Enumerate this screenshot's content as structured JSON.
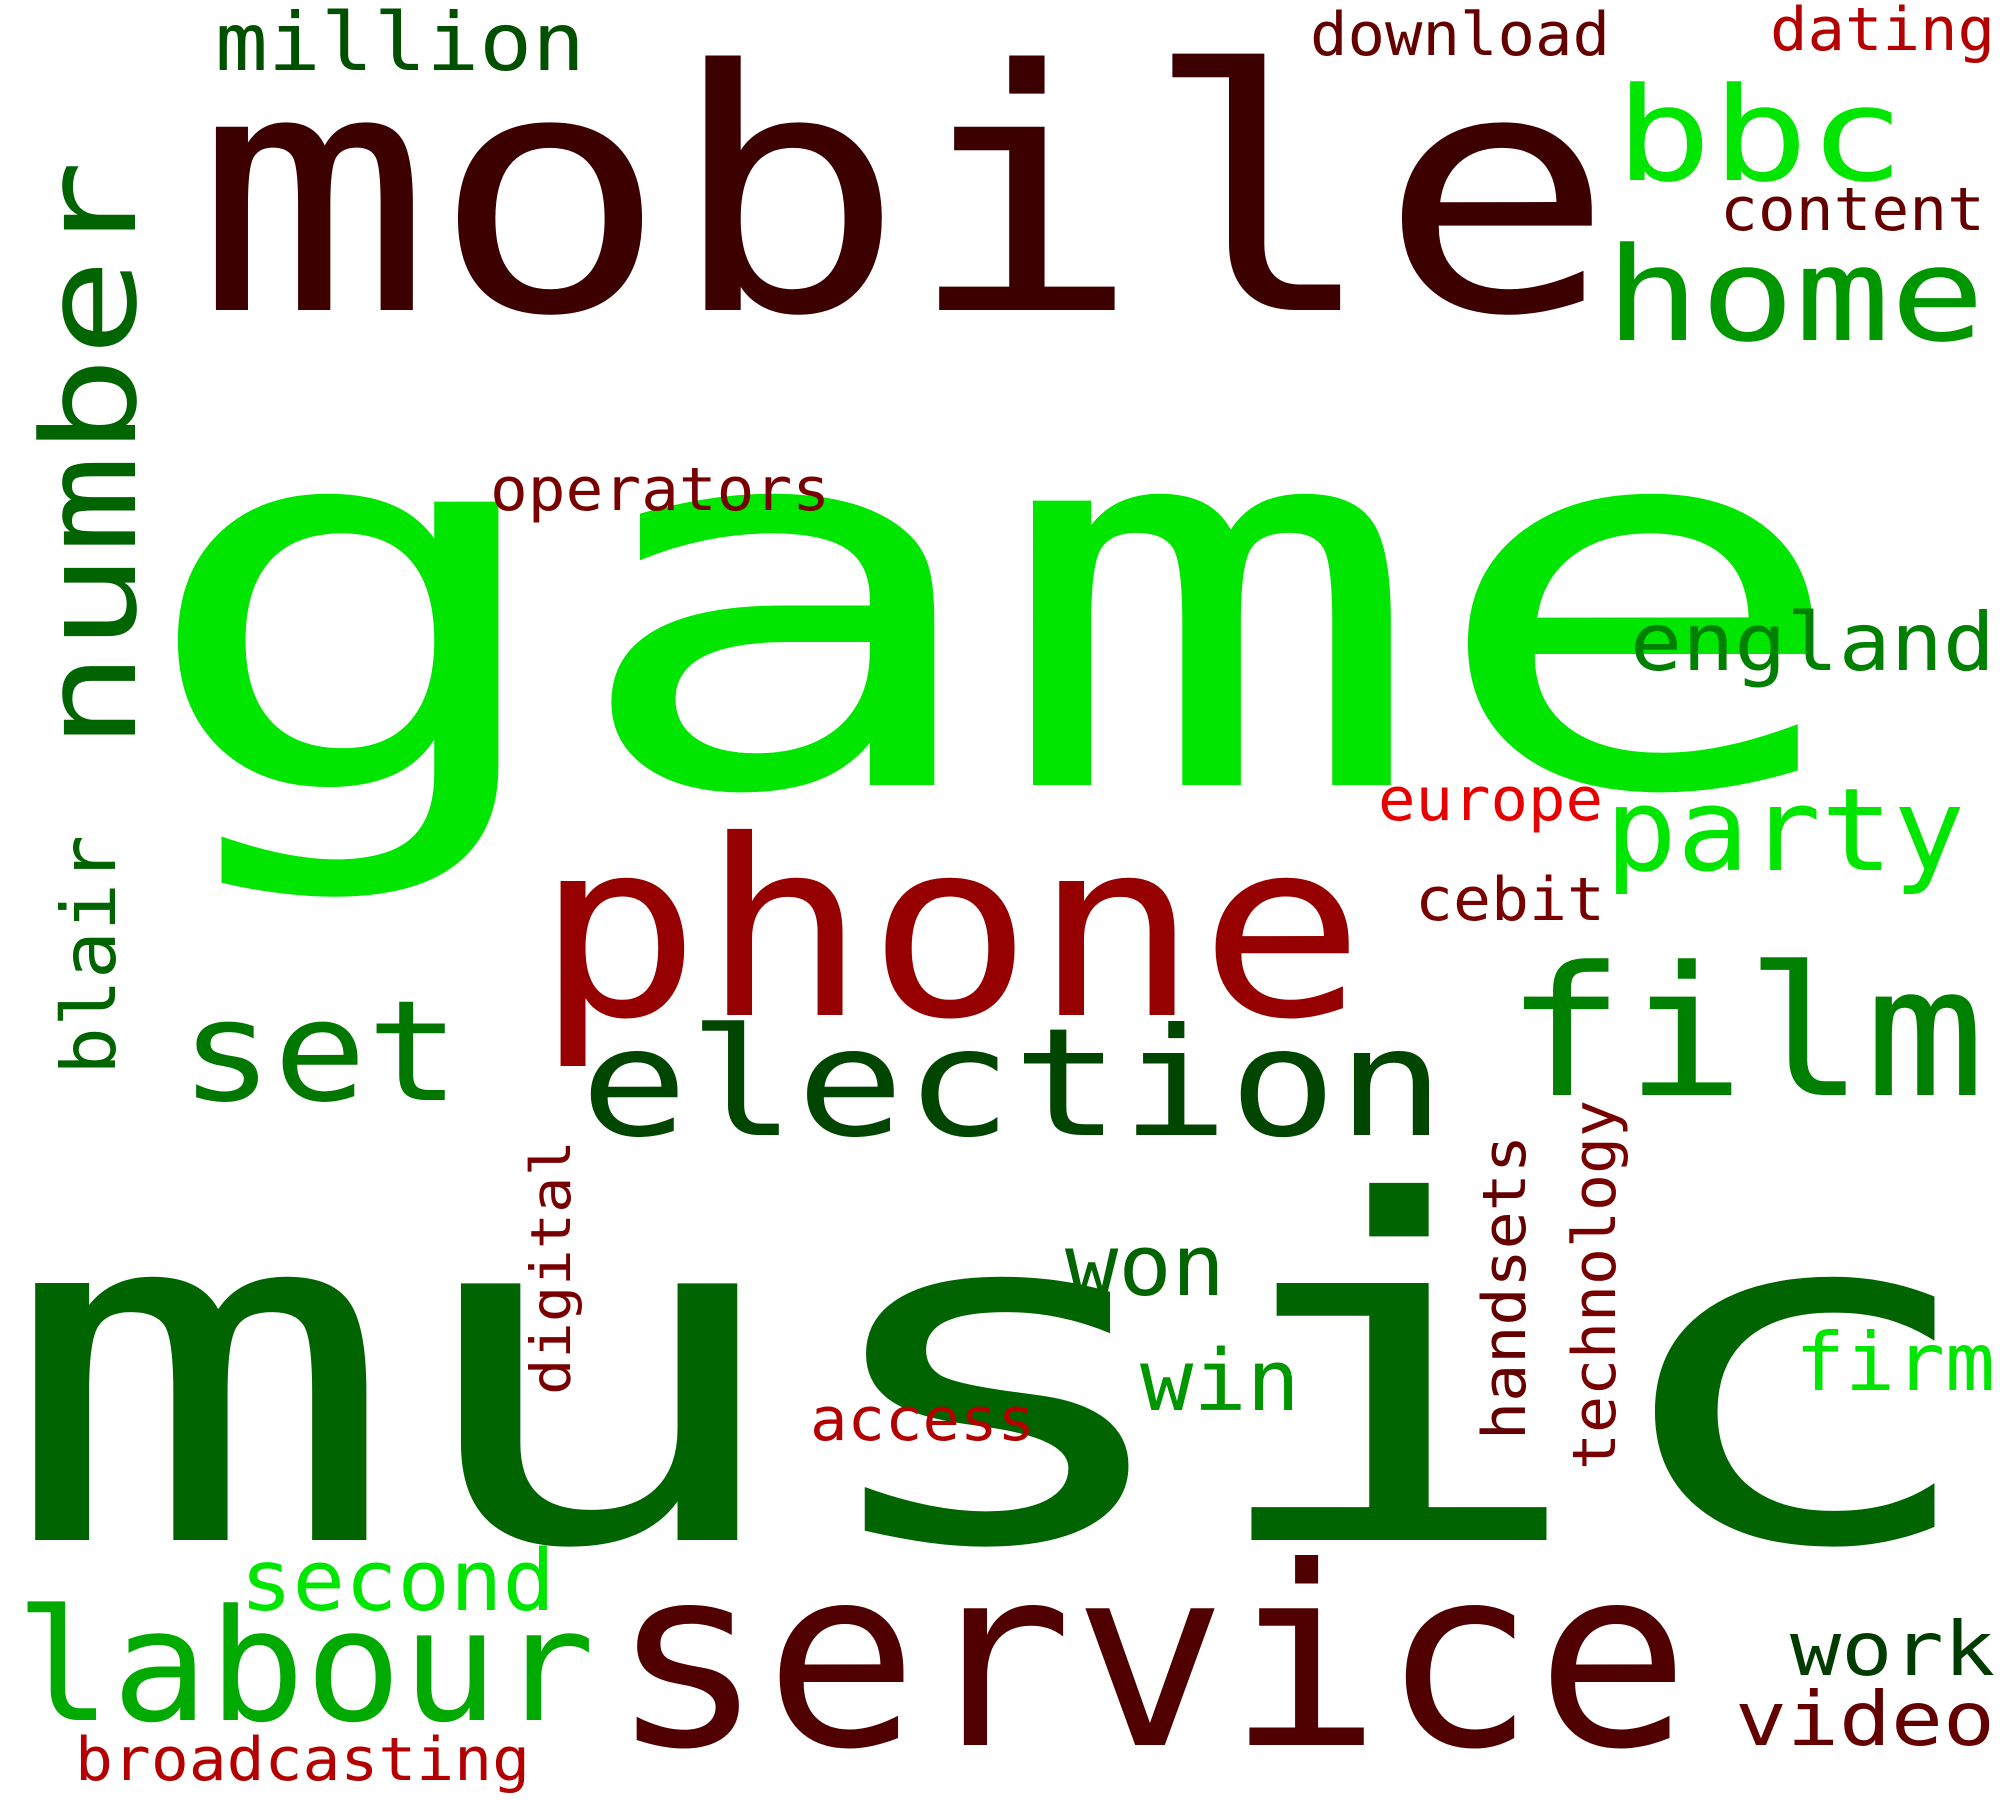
{
  "cloud": {
    "colors": {
      "bright_green": "#00E600",
      "green": "#00B400",
      "mid_green": "#008C00",
      "forest_green": "#007800",
      "deep_green": "#006400",
      "dark_green": "#004600",
      "darkest_green": "#003C00",
      "bright_red": "#E60000",
      "red": "#B40000",
      "dark_red": "#960000",
      "maroon": "#780000",
      "deep_maroon": "#500000",
      "darkest_maroon": "#3C0000"
    },
    "words": [
      {
        "text": "game",
        "color": "#00E600"
      },
      {
        "text": "music",
        "color": "#006400"
      },
      {
        "text": "mobile",
        "color": "#3C0000"
      },
      {
        "text": "phone",
        "color": "#960000"
      },
      {
        "text": "service",
        "color": "#500000"
      },
      {
        "text": "election",
        "color": "#004600"
      },
      {
        "text": "film",
        "color": "#008000"
      },
      {
        "text": "number",
        "color": "#006400"
      },
      {
        "text": "home",
        "color": "#009600"
      },
      {
        "text": "bbc",
        "color": "#00E600"
      },
      {
        "text": "labour",
        "color": "#00AA00"
      },
      {
        "text": "set",
        "color": "#007800"
      },
      {
        "text": "party",
        "color": "#00E600"
      },
      {
        "text": "england",
        "color": "#008000"
      },
      {
        "text": "million",
        "color": "#005000"
      },
      {
        "text": "download",
        "color": "#640000"
      },
      {
        "text": "dating",
        "color": "#B40000"
      },
      {
        "text": "content",
        "color": "#640000"
      },
      {
        "text": "operators",
        "color": "#780000"
      },
      {
        "text": "europe",
        "color": "#E60000"
      },
      {
        "text": "cebit",
        "color": "#780000"
      },
      {
        "text": "blair",
        "color": "#006400"
      },
      {
        "text": "second",
        "color": "#00E600"
      },
      {
        "text": "won",
        "color": "#006400"
      },
      {
        "text": "win",
        "color": "#009600"
      },
      {
        "text": "firm",
        "color": "#00E600"
      },
      {
        "text": "work",
        "color": "#003C00"
      },
      {
        "text": "video",
        "color": "#640000"
      },
      {
        "text": "access",
        "color": "#B40000"
      },
      {
        "text": "broadcasting",
        "color": "#B40000"
      },
      {
        "text": "digital",
        "color": "#780000"
      },
      {
        "text": "handsets",
        "color": "#640000"
      },
      {
        "text": "technology",
        "color": "#780000"
      }
    ]
  }
}
